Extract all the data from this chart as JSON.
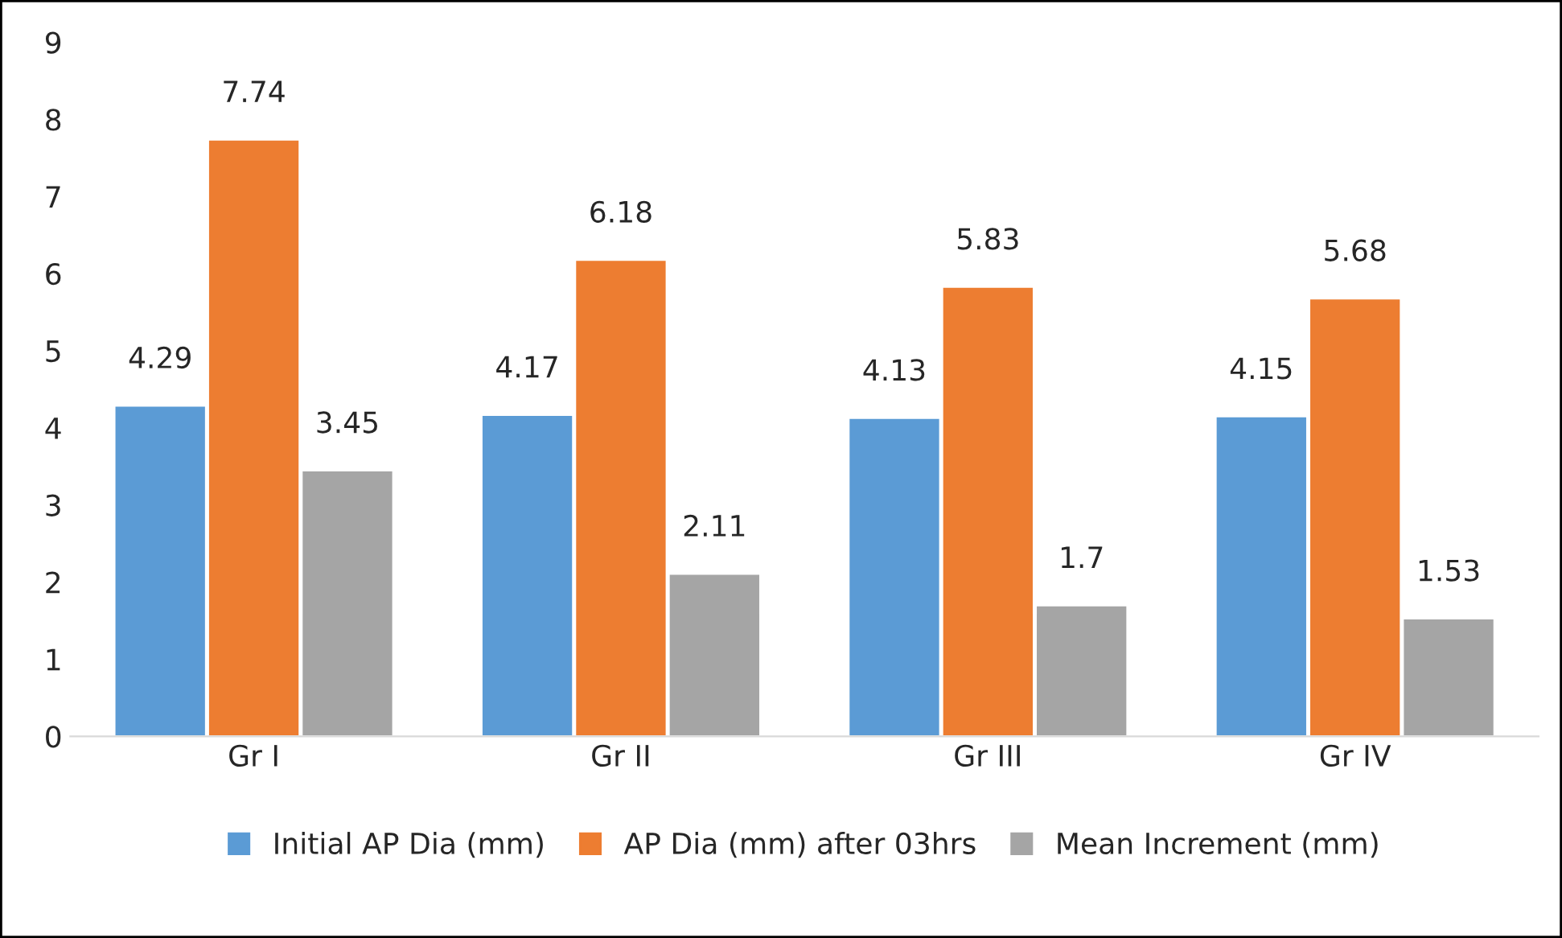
{
  "chart_data": {
    "type": "bar",
    "categories": [
      "Gr I",
      "Gr II",
      "Gr III",
      "Gr IV"
    ],
    "series": [
      {
        "name": "Initial AP Dia (mm)",
        "color": "#5b9bd5",
        "values": [
          4.29,
          4.17,
          4.13,
          4.15
        ]
      },
      {
        "name": "AP Dia (mm) after 03hrs",
        "color": "#ed7d31",
        "values": [
          7.74,
          6.18,
          5.83,
          5.68
        ]
      },
      {
        "name": "Mean Increment (mm)",
        "color": "#a5a5a5",
        "values": [
          3.45,
          2.11,
          1.7,
          1.53
        ]
      }
    ],
    "ylim": [
      0,
      9
    ],
    "yticks": [
      0,
      1,
      2,
      3,
      4,
      5,
      6,
      7,
      8,
      9
    ],
    "data_labels": true,
    "legend": "bottom",
    "grid": false
  }
}
